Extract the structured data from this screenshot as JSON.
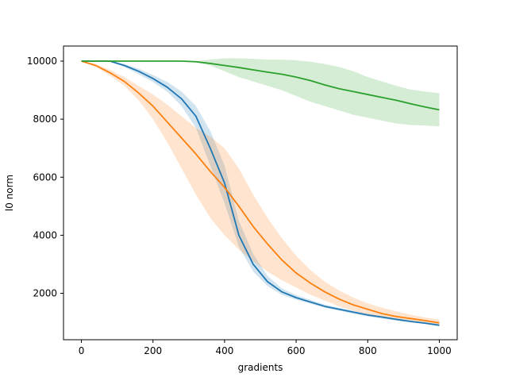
{
  "chart_data": {
    "type": "line",
    "title": "",
    "xlabel": "gradients",
    "ylabel": "l0 norm",
    "xlim": [
      -50,
      1050
    ],
    "ylim": [
      400,
      10520
    ],
    "x_ticks": [
      0,
      200,
      400,
      600,
      800,
      1000
    ],
    "y_ticks": [
      2000,
      4000,
      6000,
      8000,
      10000
    ],
    "grid": false,
    "legend": "none",
    "series": [
      {
        "color": "#1f77b4",
        "x": [
          0,
          40,
          80,
          120,
          160,
          200,
          240,
          280,
          320,
          360,
          400,
          440,
          480,
          520,
          560,
          600,
          640,
          680,
          720,
          760,
          800,
          840,
          880,
          920,
          960,
          1000
        ],
        "y": [
          10000,
          10000,
          10000,
          9850,
          9650,
          9400,
          9100,
          8700,
          8100,
          7000,
          5800,
          4000,
          3000,
          2400,
          2050,
          1850,
          1700,
          1550,
          1450,
          1350,
          1250,
          1180,
          1100,
          1030,
          970,
          900
        ],
        "lower": [
          10000,
          10000,
          9990,
          9800,
          9550,
          9280,
          8950,
          8450,
          7700,
          6400,
          5100,
          3600,
          2750,
          2250,
          1950,
          1780,
          1640,
          1500,
          1400,
          1300,
          1200,
          1130,
          1060,
          1000,
          940,
          860
        ],
        "upper": [
          10000,
          10000,
          10000,
          9900,
          9740,
          9520,
          9280,
          8950,
          8450,
          7600,
          6400,
          4500,
          3350,
          2600,
          2170,
          1940,
          1770,
          1610,
          1500,
          1400,
          1300,
          1220,
          1150,
          1070,
          1010,
          950
        ]
      },
      {
        "color": "#ff7f0e",
        "x": [
          0,
          40,
          80,
          120,
          160,
          200,
          240,
          280,
          320,
          360,
          400,
          440,
          480,
          520,
          560,
          600,
          640,
          680,
          720,
          760,
          800,
          840,
          880,
          920,
          960,
          1000
        ],
        "y": [
          10000,
          9850,
          9600,
          9300,
          8900,
          8450,
          7900,
          7350,
          6800,
          6200,
          5650,
          5000,
          4300,
          3700,
          3150,
          2700,
          2350,
          2050,
          1800,
          1600,
          1450,
          1300,
          1200,
          1130,
          1060,
          980
        ],
        "lower": [
          10000,
          9800,
          9500,
          9150,
          8650,
          8000,
          7200,
          6300,
          5400,
          4600,
          4000,
          3500,
          3100,
          2750,
          2450,
          2200,
          1950,
          1750,
          1550,
          1400,
          1280,
          1180,
          1100,
          1040,
          980,
          920
        ],
        "upper": [
          10000,
          9900,
          9700,
          9450,
          9150,
          8850,
          8500,
          8100,
          7700,
          7400,
          7000,
          6300,
          5400,
          4600,
          3900,
          3300,
          2800,
          2400,
          2100,
          1850,
          1650,
          1500,
          1380,
          1260,
          1170,
          1100
        ]
      },
      {
        "color": "#2ca02c",
        "x": [
          0,
          40,
          80,
          120,
          160,
          200,
          240,
          280,
          320,
          360,
          400,
          440,
          480,
          520,
          560,
          600,
          640,
          680,
          720,
          760,
          800,
          840,
          880,
          920,
          960,
          1000
        ],
        "y": [
          10000,
          10000,
          10000,
          10000,
          10000,
          10000,
          10000,
          10000,
          9980,
          9920,
          9850,
          9780,
          9700,
          9620,
          9550,
          9450,
          9330,
          9180,
          9050,
          8950,
          8850,
          8750,
          8650,
          8530,
          8420,
          8320
        ],
        "lower": [
          10000,
          10000,
          10000,
          10000,
          10000,
          10000,
          10000,
          10000,
          9950,
          9850,
          9650,
          9450,
          9300,
          9150,
          9000,
          8800,
          8600,
          8450,
          8300,
          8150,
          8050,
          7950,
          7850,
          7800,
          7780,
          7750
        ],
        "upper": [
          10000,
          10000,
          10000,
          10000,
          10000,
          10000,
          10000,
          10000,
          10000,
          10050,
          10100,
          10100,
          10080,
          10050,
          10050,
          10030,
          9980,
          9900,
          9800,
          9650,
          9450,
          9300,
          9150,
          9020,
          8950,
          8900
        ]
      }
    ]
  }
}
